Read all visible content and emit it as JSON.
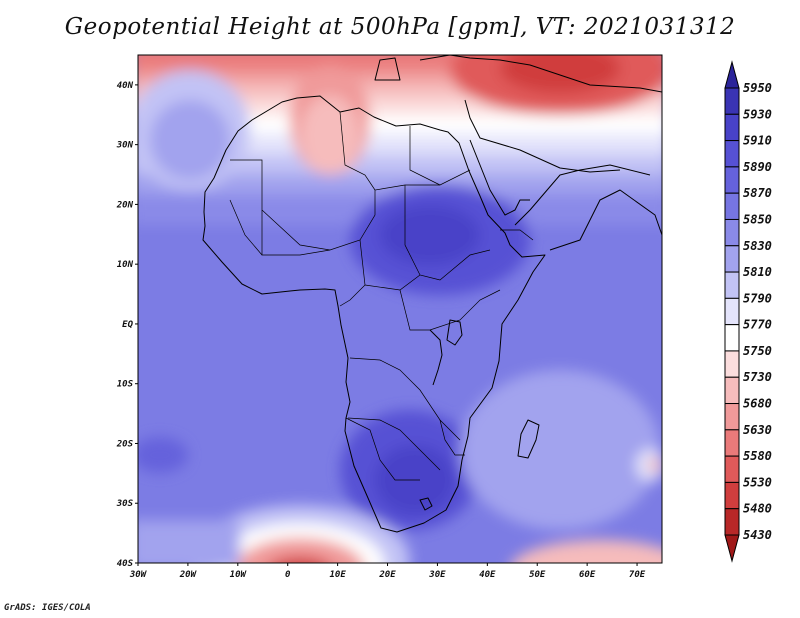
{
  "map": {
    "title": "Geopotential Height at 500hPa [gpm], VT: 2021031312",
    "lat_labels": [
      "40N",
      "30N",
      "20N",
      "10N",
      "EQ",
      "10S",
      "20S",
      "30S",
      "40S"
    ],
    "lon_labels": [
      "30W",
      "20W",
      "10W",
      "0",
      "10E",
      "20E",
      "30E",
      "40E",
      "50E",
      "60E",
      "70E"
    ],
    "lat_values": [
      40,
      30,
      20,
      10,
      0,
      -10,
      -20,
      -30,
      -40
    ],
    "lon_values": [
      -30,
      -20,
      -10,
      0,
      10,
      20,
      30,
      40,
      50,
      60,
      70
    ],
    "extent": {
      "lon_min": -30,
      "lon_max": 75,
      "lat_min": -40,
      "lat_max": 45
    },
    "footer": "GrADS: IGES/COLA"
  },
  "colorbar": {
    "levels": [
      "5950",
      "5930",
      "5910",
      "5890",
      "5870",
      "5850",
      "5830",
      "5810",
      "5790",
      "5770",
      "5750",
      "5730",
      "5680",
      "5630",
      "5580",
      "5530",
      "5480",
      "5430"
    ],
    "colors": [
      "#2b249a",
      "#3a34b4",
      "#4842c8",
      "#5651d4",
      "#6562dc",
      "#7675e2",
      "#8a8ae8",
      "#a2a3ee",
      "#c2c3f5",
      "#e4e4fb",
      "#ffffff",
      "#fbdddd",
      "#f6bcbc",
      "#f09a9a",
      "#ea7a7a",
      "#e05a5a",
      "#d03e3e",
      "#b82828",
      "#a01818"
    ]
  }
}
